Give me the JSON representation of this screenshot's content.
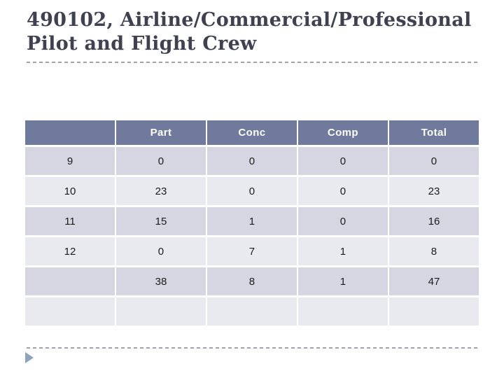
{
  "slide": {
    "title": "490102, Airline/Commercial/Professional Pilot and Flight Crew"
  },
  "table": {
    "headers": [
      "",
      "Part",
      "Conc",
      "Comp",
      "Total"
    ],
    "rows": [
      [
        "9",
        "0",
        "0",
        "0",
        "0"
      ],
      [
        "10",
        "23",
        "0",
        "0",
        "23"
      ],
      [
        "11",
        "15",
        "1",
        "0",
        "16"
      ],
      [
        "12",
        "0",
        "7",
        "1",
        "8"
      ],
      [
        "",
        "38",
        "8",
        "1",
        "47"
      ],
      [
        "",
        "",
        "",
        "",
        ""
      ]
    ]
  },
  "chart_data": {
    "type": "table",
    "title": "490102, Airline/Commercial/Professional Pilot and Flight Crew",
    "columns": [
      "",
      "Part",
      "Conc",
      "Comp",
      "Total"
    ],
    "rows": [
      {
        "grade": "9",
        "Part": 0,
        "Conc": 0,
        "Comp": 0,
        "Total": 0
      },
      {
        "grade": "10",
        "Part": 23,
        "Conc": 0,
        "Comp": 0,
        "Total": 23
      },
      {
        "grade": "11",
        "Part": 15,
        "Conc": 1,
        "Comp": 0,
        "Total": 16
      },
      {
        "grade": "12",
        "Part": 0,
        "Conc": 7,
        "Comp": 1,
        "Total": 8
      },
      {
        "grade": "",
        "Part": 38,
        "Conc": 8,
        "Comp": 1,
        "Total": 47
      }
    ]
  },
  "footer": {
    "arrow_icon": "right-triangle"
  },
  "colors": {
    "slide_bg": "#FFFFFF",
    "title_text": "#3F4150",
    "header_bg": "#6F7A9C",
    "header_text": "#FFFFFF",
    "row_dark": "#D5D6E1",
    "row_light": "#E9EAF0",
    "cell_text": "#1B1B1B",
    "divider": "#A0A2AC",
    "arrow": "#8FA3BE"
  }
}
